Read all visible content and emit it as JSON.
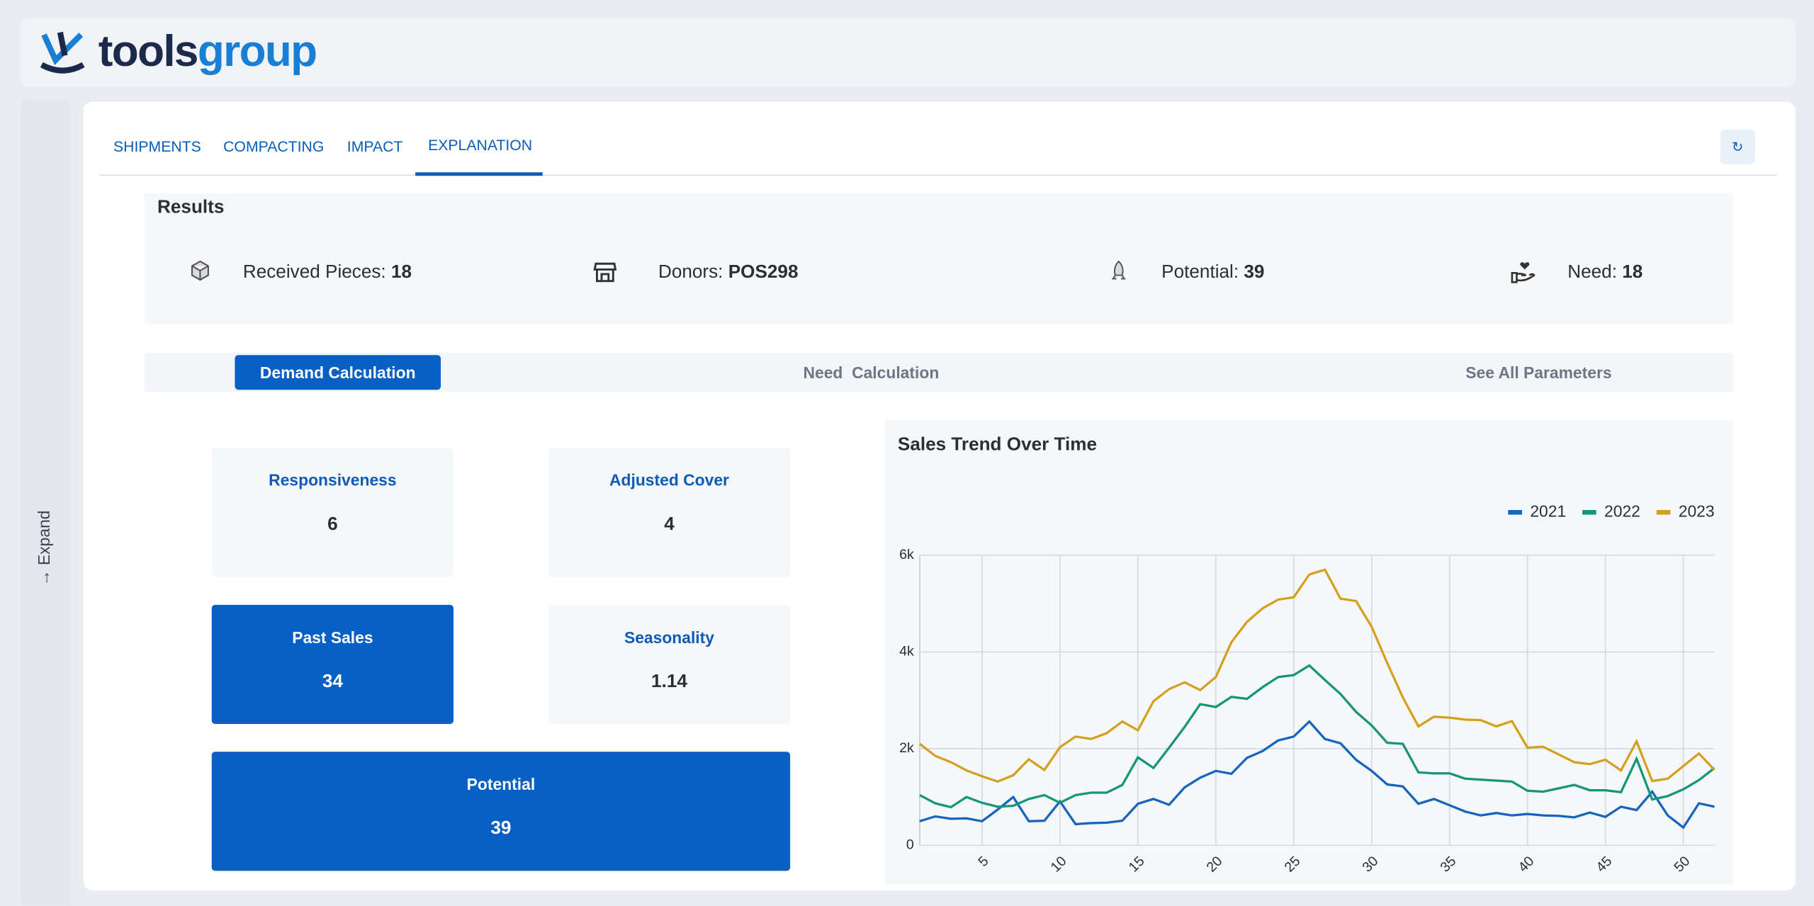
{
  "header": {
    "logo_part1": "tools",
    "logo_part2": "group"
  },
  "sidebar": {
    "expand": "Expand"
  },
  "tabs": [
    "SHIPMENTS",
    "COMPACTING",
    "IMPACT",
    "EXPLANATION"
  ],
  "results": {
    "title": "Results",
    "items": [
      {
        "label": "Received Pieces:",
        "value": "18"
      },
      {
        "label": "Donors:",
        "value": "POS298"
      },
      {
        "label": "Potential:",
        "value": "39"
      },
      {
        "label": "Need:",
        "value": "18"
      }
    ]
  },
  "subtabs": [
    "Demand Calculation",
    "Need  Calculation",
    "See All Parameters"
  ],
  "cards": [
    {
      "label": "Responsiveness",
      "value": "6"
    },
    {
      "label": "Adjusted Cover",
      "value": "4"
    },
    {
      "label": "Past Sales",
      "value": "34"
    },
    {
      "label": "Seasonality",
      "value": "1.14"
    },
    {
      "label": "Potential",
      "value": "39"
    }
  ],
  "chart_data": {
    "type": "line",
    "title": "Sales Trend Over Time",
    "x": [
      1,
      2,
      3,
      4,
      5,
      6,
      7,
      8,
      9,
      10,
      11,
      12,
      13,
      14,
      15,
      16,
      17,
      18,
      19,
      20,
      21,
      22,
      23,
      24,
      25,
      26,
      27,
      28,
      29,
      30,
      31,
      32,
      33,
      34,
      35,
      36,
      37,
      38,
      39,
      40,
      41,
      42,
      43,
      44,
      45,
      46,
      47,
      48,
      49,
      50,
      51,
      52
    ],
    "xlim": [
      1,
      52
    ],
    "xticks": [
      5,
      10,
      15,
      20,
      25,
      30,
      35,
      40,
      45,
      50
    ],
    "ylim": [
      0,
      6000
    ],
    "yticks": [
      0,
      {
        "value": 2000,
        "label": "2k"
      },
      {
        "value": 4000,
        "label": "4k"
      },
      {
        "value": 6000,
        "label": "6k"
      }
    ],
    "grid": true,
    "legend": "top-right",
    "series": [
      {
        "name": "2021",
        "color": "#1565c0",
        "values": [
          500,
          600,
          550,
          560,
          500,
          740,
          1000,
          500,
          510,
          910,
          440,
          460,
          470,
          510,
          860,
          960,
          840,
          1200,
          1400,
          1540,
          1480,
          1810,
          1950,
          2170,
          2250,
          2560,
          2200,
          2110,
          1770,
          1540,
          1260,
          1220,
          860,
          960,
          830,
          700,
          620,
          670,
          620,
          650,
          620,
          610,
          580,
          680,
          590,
          800,
          730,
          1110,
          620,
          370,
          870,
          800
        ]
      },
      {
        "name": "2022",
        "color": "#14967a",
        "values": [
          1040,
          870,
          790,
          1000,
          880,
          800,
          820,
          960,
          1040,
          880,
          1040,
          1090,
          1090,
          1250,
          1820,
          1600,
          2020,
          2450,
          2920,
          2860,
          3070,
          3030,
          3270,
          3480,
          3520,
          3720,
          3420,
          3130,
          2760,
          2480,
          2120,
          2100,
          1510,
          1490,
          1490,
          1380,
          1360,
          1340,
          1320,
          1130,
          1110,
          1180,
          1250,
          1140,
          1140,
          1100,
          1790,
          950,
          1020,
          1160,
          1350,
          1600
        ]
      },
      {
        "name": "2023",
        "color": "#d4a020",
        "values": [
          2100,
          1850,
          1720,
          1550,
          1430,
          1320,
          1450,
          1780,
          1560,
          2030,
          2250,
          2200,
          2320,
          2560,
          2380,
          2980,
          3230,
          3370,
          3210,
          3480,
          4200,
          4620,
          4900,
          5080,
          5130,
          5600,
          5700,
          5100,
          5050,
          4520,
          3770,
          3060,
          2460,
          2660,
          2640,
          2600,
          2590,
          2460,
          2570,
          2020,
          2040,
          1880,
          1720,
          1680,
          1770,
          1550,
          2150,
          1330,
          1380,
          1640,
          1900,
          1560
        ]
      }
    ]
  }
}
